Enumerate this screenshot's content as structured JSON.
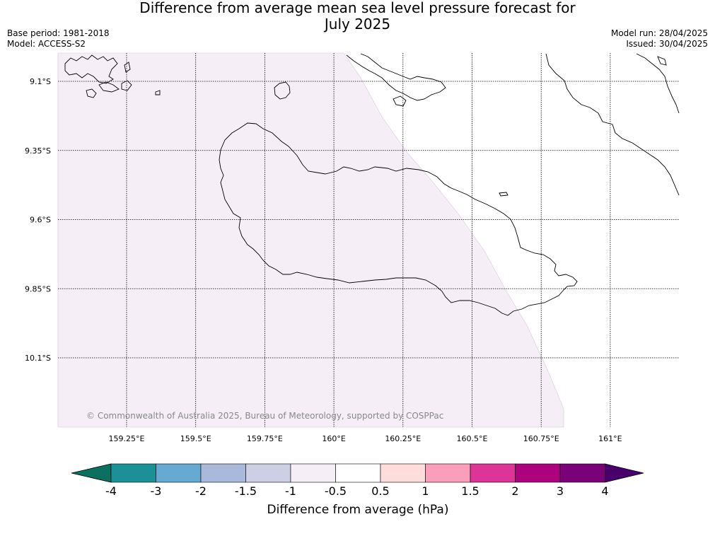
{
  "header": {
    "title_line1": "Difference from average mean sea level pressure forecast for",
    "title_line2": "July 2025",
    "base_period": "Base period: 1981-2018",
    "model": "Model: ACCESS-S2",
    "model_run": "Model run: 28/04/2025",
    "issued": "Issued: 30/04/2025"
  },
  "map": {
    "lon_labels": [
      "159.25°E",
      "159.5°E",
      "159.75°E",
      "160°E",
      "160.25°E",
      "160.5°E",
      "160.75°E",
      "161°E"
    ],
    "lon_values": [
      159.25,
      159.5,
      159.75,
      160.0,
      160.25,
      160.5,
      160.75,
      161.0
    ],
    "lat_labels": [
      "9.1°S",
      "9.35°S",
      "9.6°S",
      "9.85°S",
      "10.1°S"
    ],
    "lat_values": [
      -9.1,
      -9.35,
      -9.6,
      -9.85,
      -10.1
    ],
    "credit": "© Commonwealth of Australia 2025, Bureau of Meteorology, supported by COSPPac",
    "anomaly_fill_color": "#f5eef7",
    "anomaly_category": "-0.5 to -1"
  },
  "colorbar": {
    "title": "Difference from average (hPa)",
    "ticks": [
      "-4",
      "-3",
      "-2",
      "-1.5",
      "-1",
      "-0.5",
      "0.5",
      "1",
      "1.5",
      "2",
      "3",
      "4"
    ],
    "colors": [
      "#1b9197",
      "#66a9d1",
      "#a8b9dc",
      "#cdd0e5",
      "#f5eef7",
      "#ffffff",
      "#ffdddd",
      "#f99fbc",
      "#dd3497",
      "#ae017e",
      "#7a0177"
    ],
    "low_extend_color": "#0b7060",
    "high_extend_color": "#4a006a"
  }
}
